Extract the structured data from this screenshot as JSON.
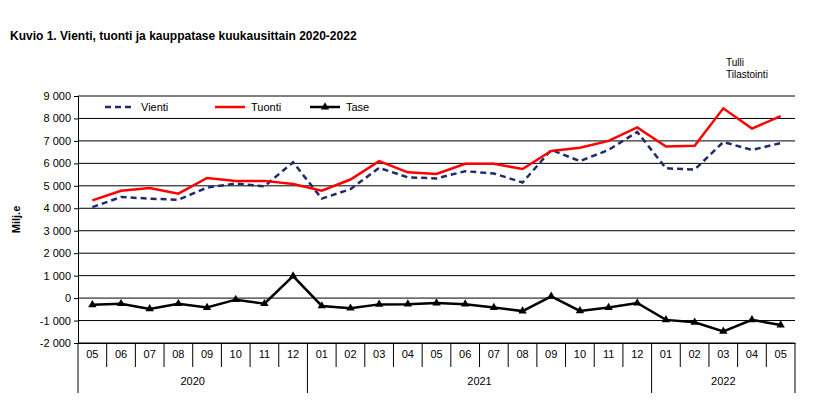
{
  "chart_data": {
    "type": "line",
    "title": "Kuvio  1. Vienti, tuonti ja kauppatase kuukausittain 2020-2022",
    "annotations": [
      "Tulli",
      "Tilastointi"
    ],
    "y_label": "Milj.e",
    "categories": [
      "05",
      "06",
      "07",
      "08",
      "09",
      "10",
      "11",
      "12",
      "01",
      "02",
      "03",
      "04",
      "05",
      "06",
      "07",
      "08",
      "09",
      "10",
      "11",
      "12",
      "01",
      "02",
      "03",
      "04",
      "05"
    ],
    "x_groups": [
      {
        "label": "2020",
        "count": 8
      },
      {
        "label": "2021",
        "count": 12
      },
      {
        "label": "2022",
        "count": 5
      }
    ],
    "series": [
      {
        "name": "Vienti",
        "color": "#1f2a6b",
        "line_style": "dashed",
        "values": [
          4050,
          4500,
          4430,
          4380,
          4920,
          5100,
          4980,
          6050,
          4430,
          4850,
          5800,
          5380,
          5330,
          5650,
          5550,
          5150,
          6600,
          6100,
          6600,
          7400,
          5780,
          5720,
          6950,
          6600,
          6900
        ]
      },
      {
        "name": "Tuonti",
        "color": "#ff0000",
        "line_style": "solid",
        "values": [
          4350,
          4780,
          4900,
          4650,
          5350,
          5220,
          5220,
          5080,
          4780,
          5280,
          6100,
          5600,
          5530,
          5980,
          5980,
          5750,
          6550,
          6700,
          7000,
          7600,
          6750,
          6780,
          8450,
          7550,
          8100
        ]
      },
      {
        "name": "Tase",
        "color": "#000000",
        "line_style": "solid",
        "marker": "triangle",
        "values": [
          -300,
          -250,
          -480,
          -250,
          -420,
          -70,
          -250,
          980,
          -350,
          -450,
          -280,
          -270,
          -220,
          -270,
          -420,
          -580,
          80,
          -570,
          -420,
          -220,
          -970,
          -1080,
          -1480,
          -970,
          -1200
        ]
      }
    ],
    "ylim": [
      -2000,
      9000
    ],
    "yticks": [
      {
        "value": -2000,
        "label": "-2 000"
      },
      {
        "value": -1000,
        "label": "-1 000"
      },
      0,
      {
        "value": 1000,
        "label": "1 000"
      },
      {
        "value": 2000,
        "label": "2 000"
      },
      {
        "value": 3000,
        "label": "3 000"
      },
      {
        "value": 4000,
        "label": "4 000"
      },
      {
        "value": 5000,
        "label": "5 000"
      },
      {
        "value": 6000,
        "label": "6 000"
      },
      {
        "value": 7000,
        "label": "7 000"
      },
      {
        "value": 8000,
        "label": "8 000"
      },
      {
        "value": 9000,
        "label": "9 000"
      }
    ],
    "grid": true,
    "legend": "upper left"
  }
}
